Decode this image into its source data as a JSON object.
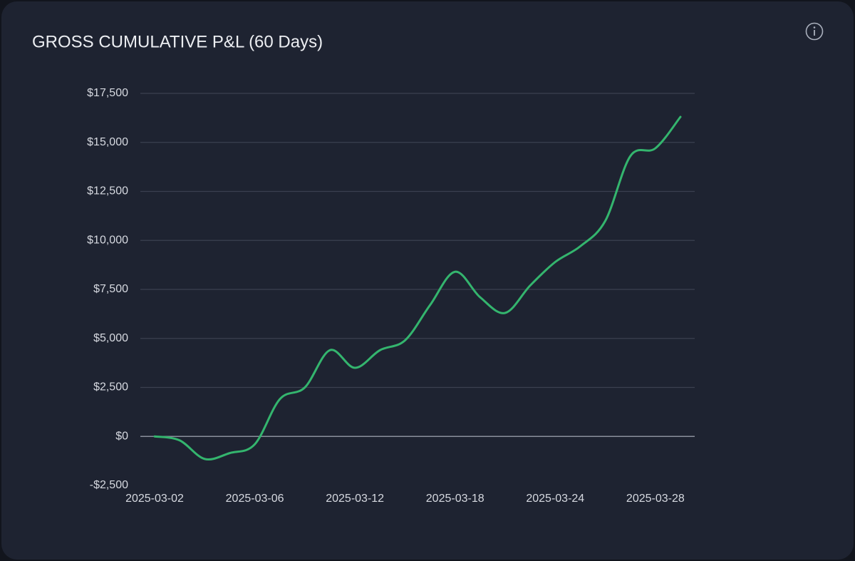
{
  "chart_data": {
    "type": "line",
    "title": "GROSS CUMULATIVE P&L (60 Days)",
    "categories": [
      "2025-03-02",
      null,
      null,
      null,
      "2025-03-06",
      null,
      null,
      null,
      "2025-03-12",
      null,
      null,
      null,
      "2025-03-18",
      null,
      null,
      null,
      "2025-03-24",
      null,
      null,
      null,
      "2025-03-28",
      null
    ],
    "values": [
      0,
      -200,
      -1150,
      -850,
      -400,
      1900,
      2500,
      4400,
      3500,
      4400,
      4900,
      6700,
      8400,
      7100,
      6300,
      7700,
      8900,
      9700,
      11000,
      14300,
      14700,
      16300
    ],
    "color": "#34b56e",
    "ylim": [
      -2500,
      17500
    ],
    "yticks": [
      {
        "value": -2500,
        "label": "-$2,500"
      },
      {
        "value": 0,
        "label": "$0"
      },
      {
        "value": 2500,
        "label": "$2,500"
      },
      {
        "value": 5000,
        "label": "$5,000"
      },
      {
        "value": 7500,
        "label": "$7,500"
      },
      {
        "value": 10000,
        "label": "$10,000"
      },
      {
        "value": 12500,
        "label": "$12,500"
      },
      {
        "value": 15000,
        "label": "$15,000"
      },
      {
        "value": 17500,
        "label": "$17,500"
      }
    ],
    "grid": true
  }
}
